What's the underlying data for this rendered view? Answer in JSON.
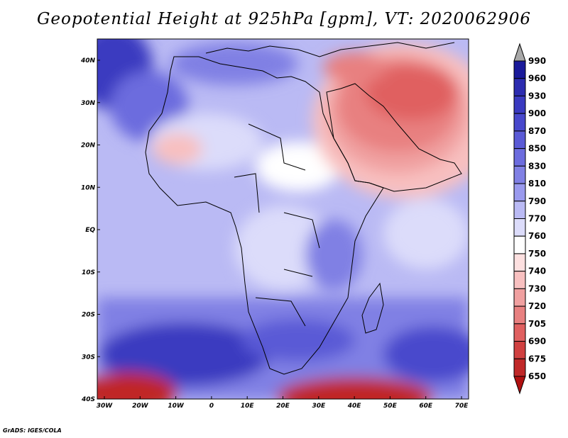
{
  "title": "Geopotential Height at 925hPa [gpm], VT: 2020062906",
  "credit": "GrADS: IGES/COLA",
  "lon_labels": [
    "30W",
    "20W",
    "10W",
    "0",
    "10E",
    "20E",
    "30E",
    "40E",
    "50E",
    "60E",
    "70E"
  ],
  "lat_labels": [
    "40N",
    "30N",
    "20N",
    "10N",
    "EQ",
    "10S",
    "20S",
    "30S",
    "40S"
  ],
  "colorbar": {
    "levels": [
      "990",
      "960",
      "930",
      "900",
      "870",
      "850",
      "830",
      "810",
      "790",
      "770",
      "760",
      "750",
      "740",
      "730",
      "720",
      "705",
      "690",
      "675",
      "650"
    ],
    "colors": [
      "#1a1a9a",
      "#2c2cb0",
      "#3a3ac0",
      "#4848cc",
      "#5a5ad6",
      "#6c6cde",
      "#8080e4",
      "#9a9aee",
      "#babaf4",
      "#dcdcfa",
      "#ffffff",
      "#fde0e0",
      "#f8c0c0",
      "#f0a0a0",
      "#e88080",
      "#e06060",
      "#d04040",
      "#c02828",
      "#a01010"
    ],
    "top_arrow_color": "#a8a8a8",
    "bottom_arrow_color": "#b01010"
  }
}
